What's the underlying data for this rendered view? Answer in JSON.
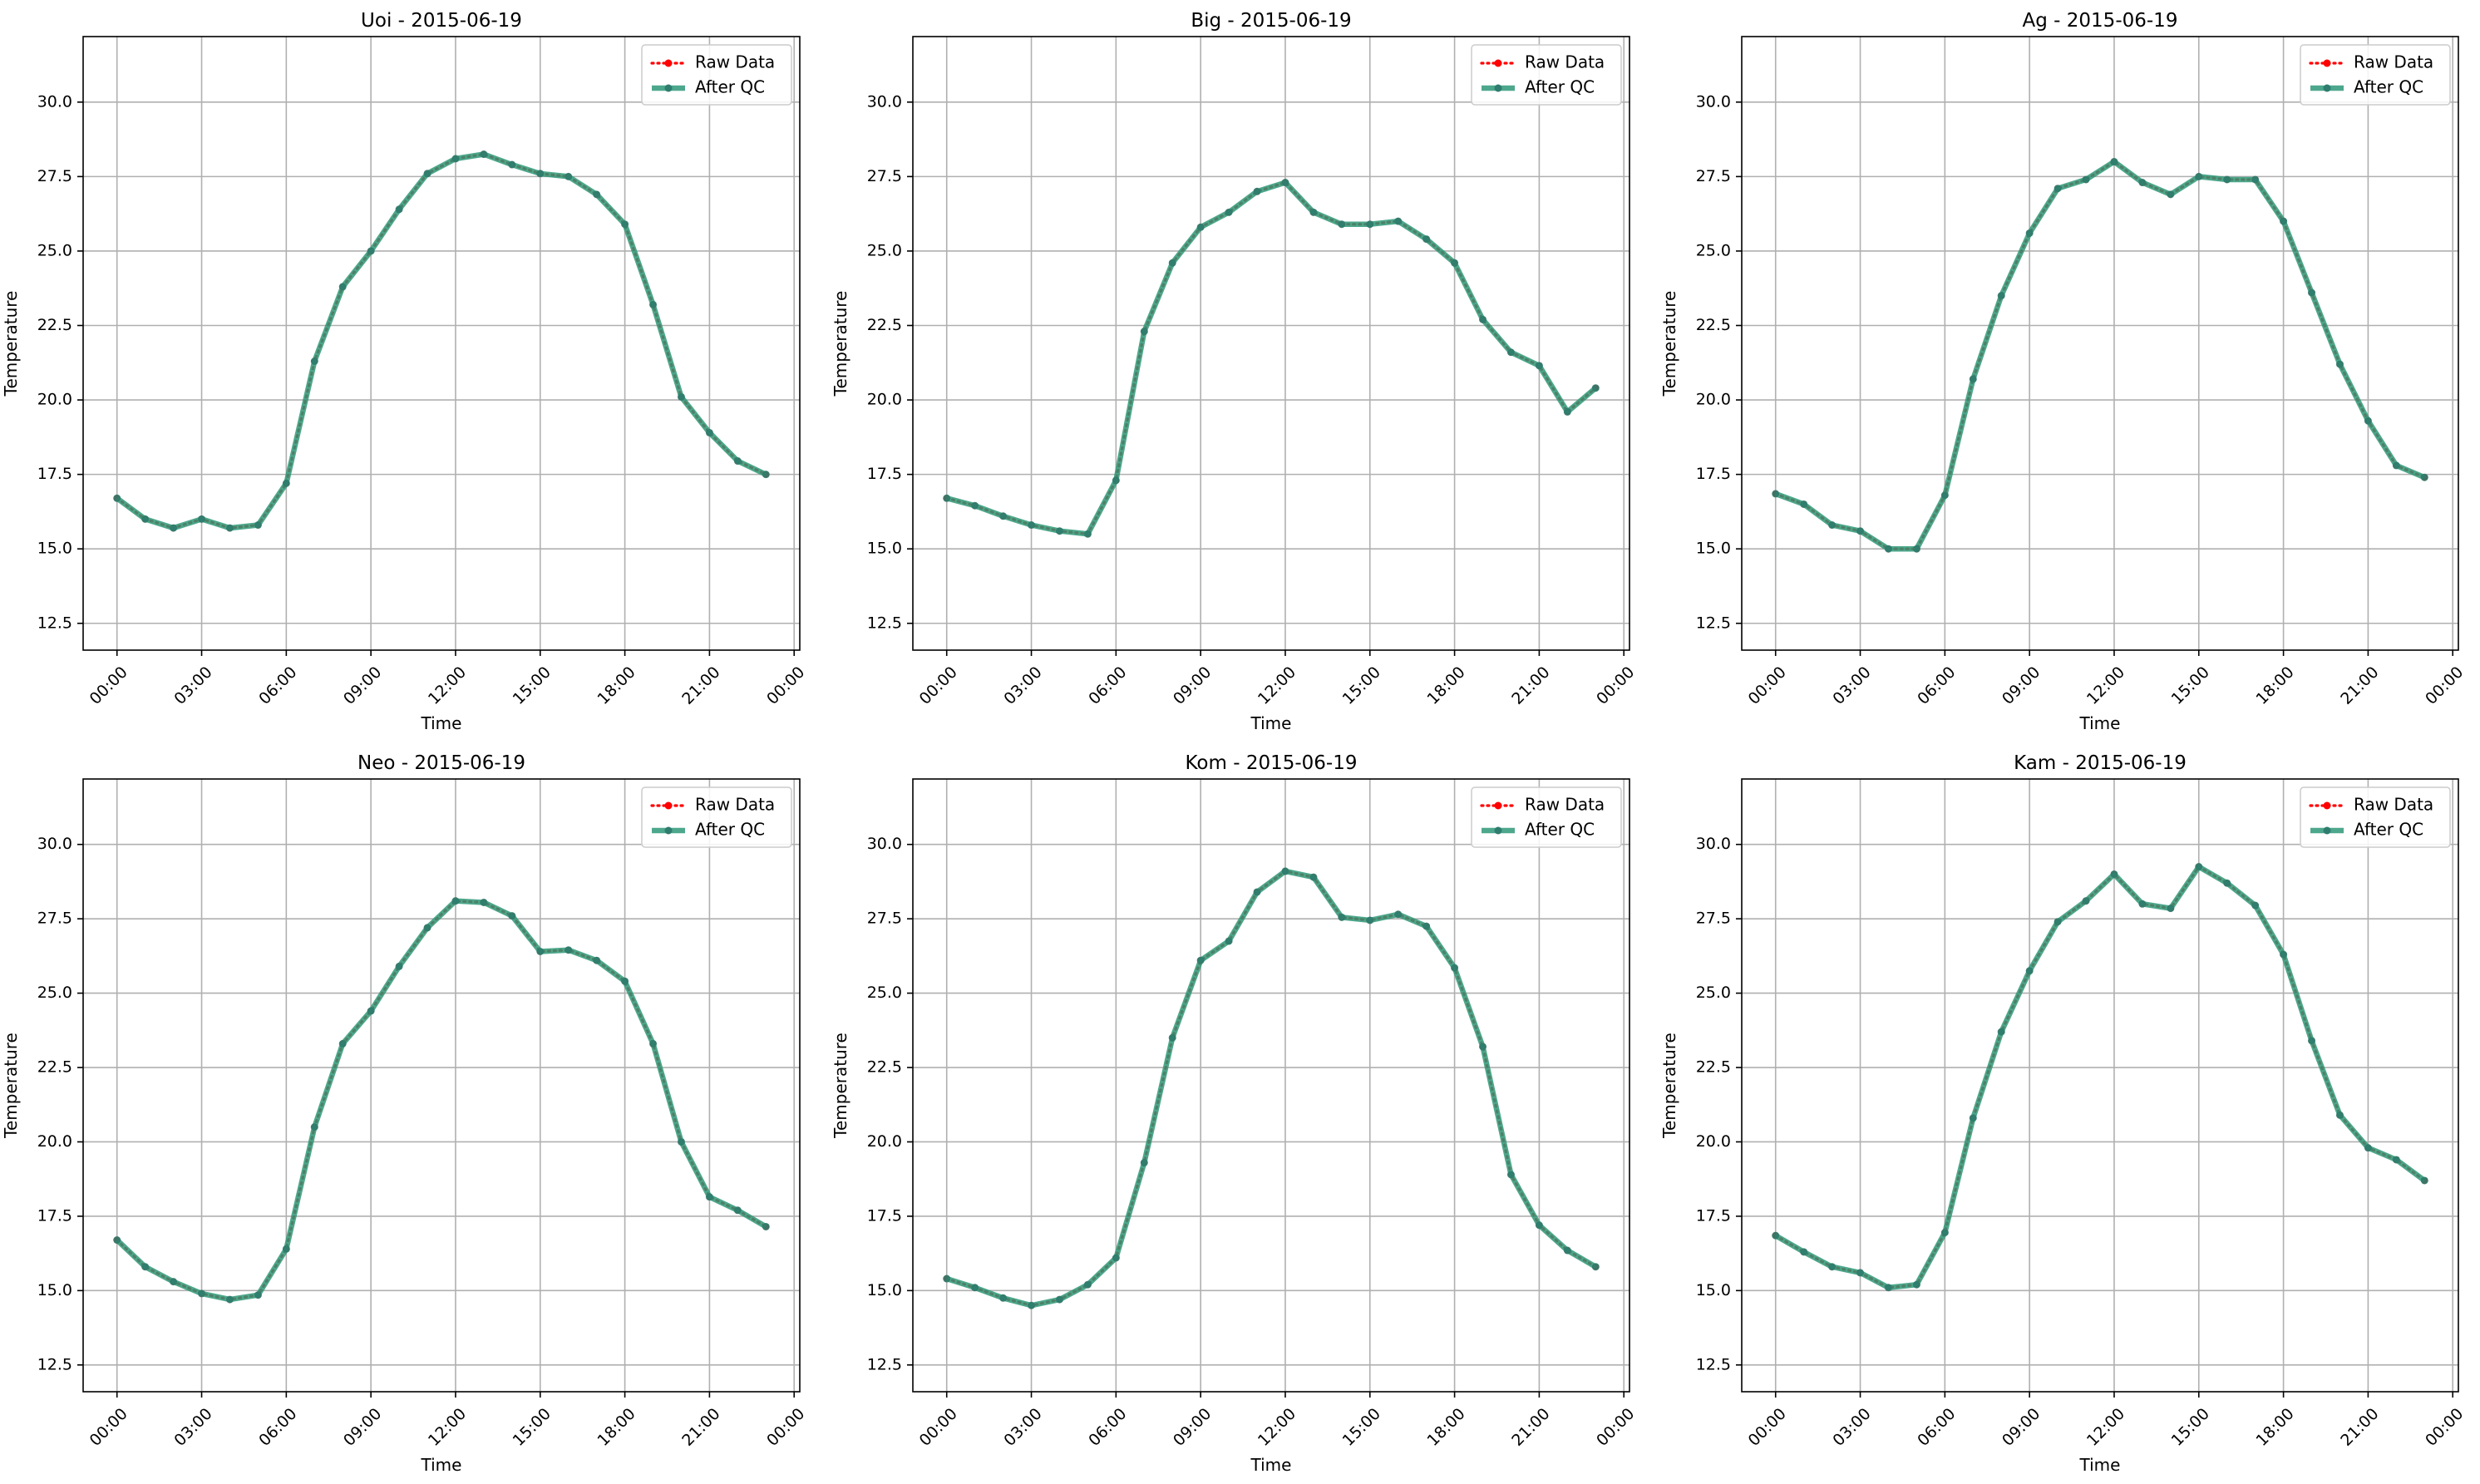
{
  "figure": {
    "legend_labels": {
      "raw": "Raw Data",
      "qc": "After QC"
    },
    "colors": {
      "raw": "#ff0000",
      "qc": "#2e9878",
      "qc_marker": "#2e7d6e",
      "grid": "#b0b0b0",
      "axis": "#000000"
    }
  },
  "chart_data": [
    {
      "type": "line",
      "title": "Uoi - 2015-06-19",
      "xlabel": "Time",
      "ylabel": "Temperature",
      "x_tick_labels": [
        "00:00",
        "03:00",
        "06:00",
        "09:00",
        "12:00",
        "15:00",
        "18:00",
        "21:00",
        "00:00"
      ],
      "y_ticks": [
        12.5,
        15.0,
        17.5,
        20.0,
        22.5,
        25.0,
        27.5,
        30.0
      ],
      "y_tick_labels": [
        "12.5",
        "15.0",
        "17.5",
        "20.0",
        "22.5",
        "25.0",
        "27.5",
        "30.0"
      ],
      "xlim_hours": [
        -1.2,
        24.2
      ],
      "ylim": [
        11.6,
        32.2
      ],
      "grid": true,
      "legend_position": "top-right",
      "x_hours": [
        0,
        1,
        2,
        3,
        4,
        5,
        6,
        7,
        8,
        9,
        10,
        11,
        12,
        13,
        14,
        15,
        16,
        17,
        18,
        19,
        20,
        21,
        22,
        23
      ],
      "series": [
        {
          "name": "Raw Data",
          "values": [
            16.7,
            16.0,
            15.7,
            16.0,
            15.7,
            15.8,
            17.2,
            21.3,
            23.8,
            25.0,
            26.4,
            27.6,
            28.1,
            28.25,
            27.9,
            27.6,
            27.5,
            26.9,
            25.9,
            23.2,
            20.1,
            18.9,
            17.95,
            17.5
          ]
        },
        {
          "name": "After QC",
          "values": [
            16.7,
            16.0,
            15.7,
            16.0,
            15.7,
            15.8,
            17.2,
            21.3,
            23.8,
            25.0,
            26.4,
            27.6,
            28.1,
            28.25,
            27.9,
            27.6,
            27.5,
            26.9,
            25.9,
            23.2,
            20.1,
            18.9,
            17.95,
            17.5
          ]
        }
      ]
    },
    {
      "type": "line",
      "title": "Big - 2015-06-19",
      "xlabel": "Time",
      "ylabel": "Temperature",
      "x_tick_labels": [
        "00:00",
        "03:00",
        "06:00",
        "09:00",
        "12:00",
        "15:00",
        "18:00",
        "21:00",
        "00:00"
      ],
      "y_ticks": [
        12.5,
        15.0,
        17.5,
        20.0,
        22.5,
        25.0,
        27.5,
        30.0
      ],
      "y_tick_labels": [
        "12.5",
        "15.0",
        "17.5",
        "20.0",
        "22.5",
        "25.0",
        "27.5",
        "30.0"
      ],
      "xlim_hours": [
        -1.2,
        24.2
      ],
      "ylim": [
        11.6,
        32.2
      ],
      "grid": true,
      "legend_position": "top-right",
      "x_hours": [
        0,
        1,
        2,
        3,
        4,
        5,
        6,
        7,
        8,
        9,
        10,
        11,
        12,
        13,
        14,
        15,
        16,
        17,
        18,
        19,
        20,
        21,
        22,
        23
      ],
      "series": [
        {
          "name": "Raw Data",
          "values": [
            16.7,
            16.45,
            16.1,
            15.8,
            15.6,
            15.5,
            17.3,
            22.3,
            24.6,
            25.8,
            26.3,
            27.0,
            27.3,
            26.3,
            25.9,
            25.9,
            26.0,
            25.4,
            24.6,
            22.7,
            21.6,
            21.15,
            19.6,
            20.4
          ]
        },
        {
          "name": "After QC",
          "values": [
            16.7,
            16.45,
            16.1,
            15.8,
            15.6,
            15.5,
            17.3,
            22.3,
            24.6,
            25.8,
            26.3,
            27.0,
            27.3,
            26.3,
            25.9,
            25.9,
            26.0,
            25.4,
            24.6,
            22.7,
            21.6,
            21.15,
            19.6,
            20.4
          ]
        }
      ]
    },
    {
      "type": "line",
      "title": "Ag - 2015-06-19",
      "xlabel": "Time",
      "ylabel": "Temperature",
      "x_tick_labels": [
        "00:00",
        "03:00",
        "06:00",
        "09:00",
        "12:00",
        "15:00",
        "18:00",
        "21:00",
        "00:00"
      ],
      "y_ticks": [
        12.5,
        15.0,
        17.5,
        20.0,
        22.5,
        25.0,
        27.5,
        30.0
      ],
      "y_tick_labels": [
        "12.5",
        "15.0",
        "17.5",
        "20.0",
        "22.5",
        "25.0",
        "27.5",
        "30.0"
      ],
      "xlim_hours": [
        -1.2,
        24.2
      ],
      "ylim": [
        11.6,
        32.2
      ],
      "grid": true,
      "legend_position": "top-right",
      "x_hours": [
        0,
        1,
        2,
        3,
        4,
        5,
        6,
        7,
        8,
        9,
        10,
        11,
        12,
        13,
        14,
        15,
        16,
        17,
        18,
        19,
        20,
        21,
        22,
        23
      ],
      "series": [
        {
          "name": "Raw Data",
          "values": [
            16.85,
            16.5,
            15.8,
            15.6,
            15.0,
            15.0,
            16.8,
            20.7,
            23.5,
            25.6,
            27.1,
            27.4,
            28.0,
            27.3,
            26.9,
            27.5,
            27.4,
            27.4,
            26.0,
            23.6,
            21.2,
            19.3,
            17.8,
            17.4
          ]
        },
        {
          "name": "After QC",
          "values": [
            16.85,
            16.5,
            15.8,
            15.6,
            15.0,
            15.0,
            16.8,
            20.7,
            23.5,
            25.6,
            27.1,
            27.4,
            28.0,
            27.3,
            26.9,
            27.5,
            27.4,
            27.4,
            26.0,
            23.6,
            21.2,
            19.3,
            17.8,
            17.4
          ]
        }
      ]
    },
    {
      "type": "line",
      "title": "Neo - 2015-06-19",
      "xlabel": "Time",
      "ylabel": "Temperature",
      "x_tick_labels": [
        "00:00",
        "03:00",
        "06:00",
        "09:00",
        "12:00",
        "15:00",
        "18:00",
        "21:00",
        "00:00"
      ],
      "y_ticks": [
        12.5,
        15.0,
        17.5,
        20.0,
        22.5,
        25.0,
        27.5,
        30.0
      ],
      "y_tick_labels": [
        "12.5",
        "15.0",
        "17.5",
        "20.0",
        "22.5",
        "25.0",
        "27.5",
        "30.0"
      ],
      "xlim_hours": [
        -1.2,
        24.2
      ],
      "ylim": [
        11.6,
        32.2
      ],
      "grid": true,
      "legend_position": "top-right",
      "x_hours": [
        0,
        1,
        2,
        3,
        4,
        5,
        6,
        7,
        8,
        9,
        10,
        11,
        12,
        13,
        14,
        15,
        16,
        17,
        18,
        19,
        20,
        21,
        22,
        23
      ],
      "series": [
        {
          "name": "Raw Data",
          "values": [
            16.7,
            15.8,
            15.3,
            14.9,
            14.7,
            14.85,
            16.4,
            20.5,
            23.3,
            24.4,
            25.9,
            27.2,
            28.1,
            28.05,
            27.6,
            26.4,
            26.45,
            26.1,
            25.4,
            23.3,
            20.0,
            18.15,
            17.7,
            17.15
          ]
        },
        {
          "name": "After QC",
          "values": [
            16.7,
            15.8,
            15.3,
            14.9,
            14.7,
            14.85,
            16.4,
            20.5,
            23.3,
            24.4,
            25.9,
            27.2,
            28.1,
            28.05,
            27.6,
            26.4,
            26.45,
            26.1,
            25.4,
            23.3,
            20.0,
            18.15,
            17.7,
            17.15
          ]
        }
      ]
    },
    {
      "type": "line",
      "title": "Kom - 2015-06-19",
      "xlabel": "Time",
      "ylabel": "Temperature",
      "x_tick_labels": [
        "00:00",
        "03:00",
        "06:00",
        "09:00",
        "12:00",
        "15:00",
        "18:00",
        "21:00",
        "00:00"
      ],
      "y_ticks": [
        12.5,
        15.0,
        17.5,
        20.0,
        22.5,
        25.0,
        27.5,
        30.0
      ],
      "y_tick_labels": [
        "12.5",
        "15.0",
        "17.5",
        "20.0",
        "22.5",
        "25.0",
        "27.5",
        "30.0"
      ],
      "xlim_hours": [
        -1.2,
        24.2
      ],
      "ylim": [
        11.6,
        32.2
      ],
      "grid": true,
      "legend_position": "top-right",
      "x_hours": [
        0,
        1,
        2,
        3,
        4,
        5,
        6,
        7,
        8,
        9,
        10,
        11,
        12,
        13,
        14,
        15,
        16,
        17,
        18,
        19,
        20,
        21,
        22,
        23
      ],
      "series": [
        {
          "name": "Raw Data",
          "values": [
            15.4,
            15.1,
            14.75,
            14.5,
            14.7,
            15.2,
            16.1,
            19.3,
            23.5,
            26.1,
            26.75,
            28.4,
            29.1,
            28.9,
            27.55,
            27.45,
            27.65,
            27.25,
            25.85,
            23.2,
            18.9,
            17.2,
            16.35,
            15.8
          ]
        },
        {
          "name": "After QC",
          "values": [
            15.4,
            15.1,
            14.75,
            14.5,
            14.7,
            15.2,
            16.1,
            19.3,
            23.5,
            26.1,
            26.75,
            28.4,
            29.1,
            28.9,
            27.55,
            27.45,
            27.65,
            27.25,
            25.85,
            23.2,
            18.9,
            17.2,
            16.35,
            15.8
          ]
        }
      ]
    },
    {
      "type": "line",
      "title": "Kam - 2015-06-19",
      "xlabel": "Time",
      "ylabel": "Temperature",
      "x_tick_labels": [
        "00:00",
        "03:00",
        "06:00",
        "09:00",
        "12:00",
        "15:00",
        "18:00",
        "21:00",
        "00:00"
      ],
      "y_ticks": [
        12.5,
        15.0,
        17.5,
        20.0,
        22.5,
        25.0,
        27.5,
        30.0
      ],
      "y_tick_labels": [
        "12.5",
        "15.0",
        "17.5",
        "20.0",
        "22.5",
        "25.0",
        "27.5",
        "30.0"
      ],
      "xlim_hours": [
        -1.2,
        24.2
      ],
      "ylim": [
        11.6,
        32.2
      ],
      "grid": true,
      "legend_position": "top-right",
      "x_hours": [
        0,
        1,
        2,
        3,
        4,
        5,
        6,
        7,
        8,
        9,
        10,
        11,
        12,
        13,
        14,
        15,
        16,
        17,
        18,
        19,
        20,
        21,
        22,
        23
      ],
      "series": [
        {
          "name": "Raw Data",
          "values": [
            16.85,
            16.3,
            15.8,
            15.6,
            15.1,
            15.2,
            16.95,
            20.8,
            23.7,
            25.75,
            27.4,
            28.1,
            29.0,
            28.0,
            27.85,
            29.25,
            28.7,
            27.95,
            26.3,
            23.4,
            20.9,
            19.8,
            19.4,
            18.7
          ]
        },
        {
          "name": "After QC",
          "values": [
            16.85,
            16.3,
            15.8,
            15.6,
            15.1,
            15.2,
            16.95,
            20.8,
            23.7,
            25.75,
            27.4,
            28.1,
            29.0,
            28.0,
            27.85,
            29.25,
            28.7,
            27.95,
            26.3,
            23.4,
            20.9,
            19.8,
            19.4,
            18.7
          ]
        }
      ]
    }
  ]
}
